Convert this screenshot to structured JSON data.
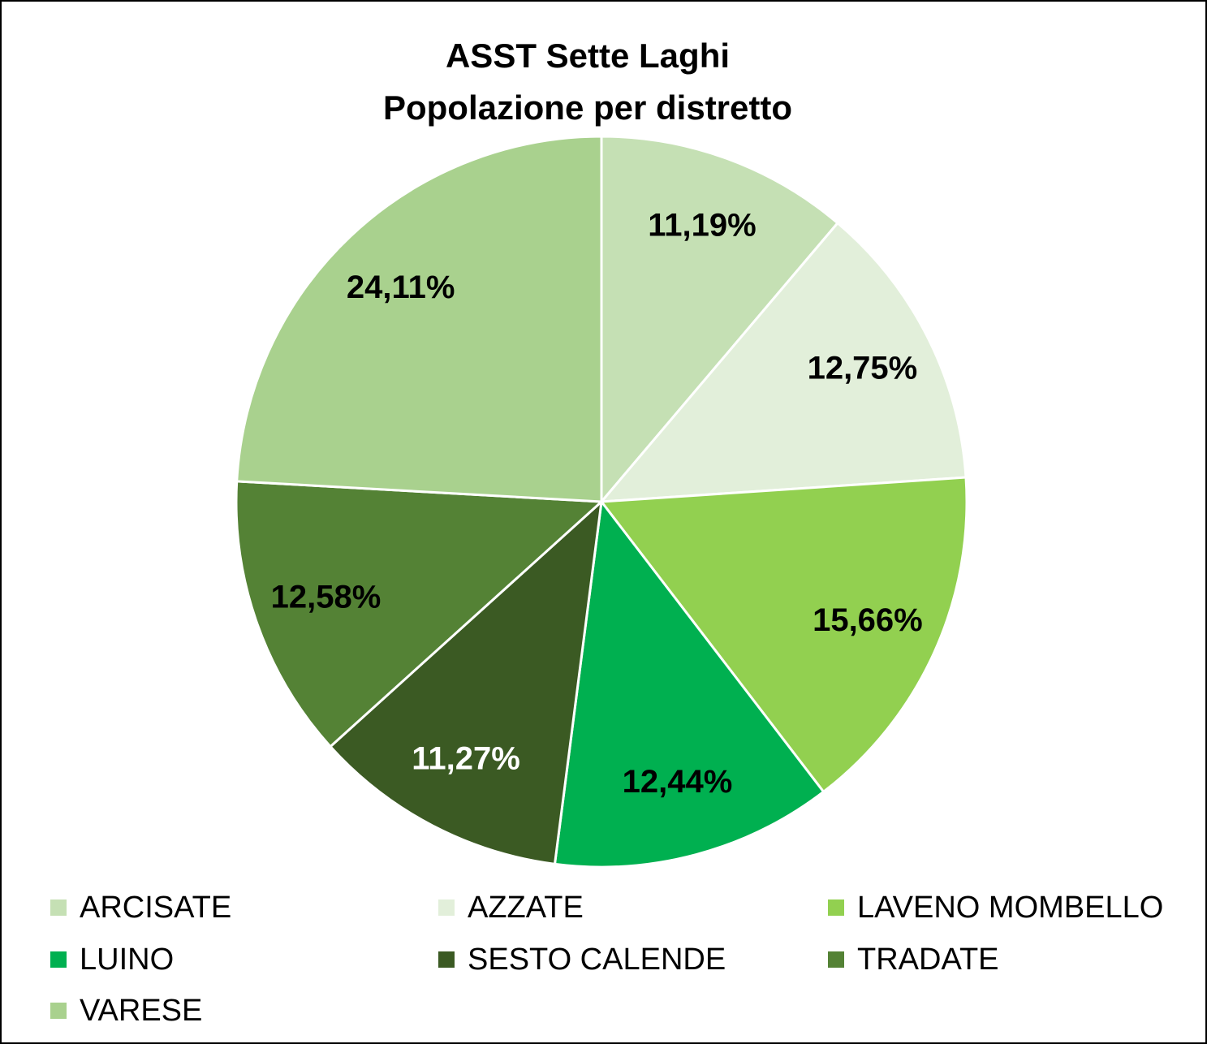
{
  "chart_data": {
    "type": "pie",
    "title": "ASST Sette Laghi",
    "subtitle": "Popolazione per distretto",
    "categories": [
      "ARCISATE",
      "AZZATE",
      "LAVENO MOMBELLO",
      "LUINO",
      "SESTO CALENDE",
      "TRADATE",
      "VARESE"
    ],
    "values": [
      11.19,
      12.75,
      15.66,
      12.44,
      11.27,
      12.58,
      24.11
    ],
    "value_labels": [
      "11,19%",
      "12,75%",
      "15,66%",
      "12,44%",
      "11,27%",
      "12,58%",
      "24,11%"
    ],
    "colors": [
      "#c5e0b4",
      "#e2efda",
      "#92d050",
      "#00b050",
      "#3b5a23",
      "#548235",
      "#a9d18e"
    ],
    "label_colors": [
      "#000000",
      "#000000",
      "#000000",
      "#000000",
      "#ffffff",
      "#000000",
      "#000000"
    ],
    "legend": "bottom"
  }
}
